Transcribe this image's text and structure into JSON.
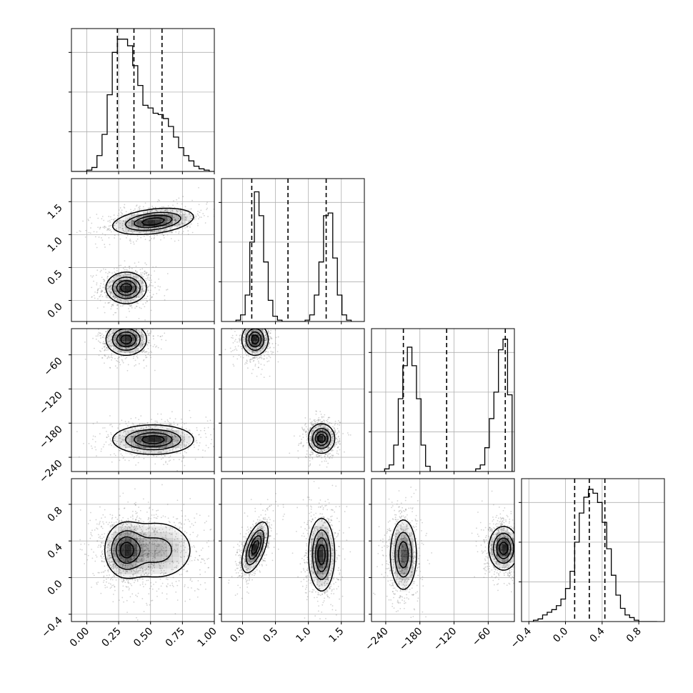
{
  "chart_data": {
    "type": "corner",
    "parameters": [
      {
        "range": [
          -0.12,
          1.0
        ],
        "ticks": [
          0.0,
          0.25,
          0.5,
          0.75,
          1.0
        ],
        "tick_labels": [
          "0.00",
          "0.25",
          "0.50",
          "0.75",
          "1.00"
        ]
      },
      {
        "range": [
          -0.32,
          1.85
        ],
        "ticks": [
          0.0,
          0.5,
          1.0,
          1.5
        ],
        "tick_labels": [
          "0.0",
          "0.5",
          "1.0",
          "1.5"
        ]
      },
      {
        "range": [
          -265,
          -14
        ],
        "ticks": [
          -240,
          -180,
          -120,
          -60
        ],
        "tick_labels": [
          "−240",
          "−180",
          "−120",
          "−60"
        ]
      },
      {
        "range": [
          -0.48,
          1.08
        ],
        "ticks": [
          -0.4,
          0.0,
          0.4,
          0.8
        ],
        "tick_labels": [
          "−0.4",
          "0.0",
          "0.4",
          "0.8"
        ]
      }
    ],
    "marginals": [
      {
        "quantiles": [
          0.24,
          0.37,
          0.59
        ],
        "edges": [
          -0.12,
          -0.08,
          -0.04,
          0.0,
          0.04,
          0.08,
          0.12,
          0.16,
          0.2,
          0.24,
          0.28,
          0.32,
          0.36,
          0.4,
          0.44,
          0.48,
          0.52,
          0.56,
          0.6,
          0.64,
          0.68,
          0.72,
          0.76,
          0.8,
          0.84,
          0.88,
          0.92,
          0.96,
          1.0
        ],
        "counts": [
          0,
          0,
          0,
          0.01,
          0.03,
          0.12,
          0.28,
          0.58,
          0.9,
          1.0,
          1.0,
          0.95,
          0.8,
          0.65,
          0.5,
          0.48,
          0.44,
          0.43,
          0.4,
          0.34,
          0.26,
          0.18,
          0.12,
          0.08,
          0.04,
          0.02,
          0.01,
          0.0
        ]
      },
      {
        "quantiles": [
          0.14,
          0.69,
          1.27
        ],
        "edges": [
          -0.1,
          -0.03,
          0.04,
          0.11,
          0.18,
          0.25,
          0.32,
          0.39,
          0.46,
          0.53,
          0.6,
          0.67,
          0.74,
          0.81,
          0.88,
          0.95,
          1.02,
          1.09,
          1.16,
          1.23,
          1.3,
          1.37,
          1.44,
          1.51,
          1.58,
          1.65
        ],
        "counts": [
          0.01,
          0.05,
          0.2,
          0.6,
          0.98,
          0.8,
          0.45,
          0.16,
          0.04,
          0.01,
          0.0,
          0.0,
          0.0,
          0.0,
          0.0,
          0.01,
          0.05,
          0.2,
          0.45,
          0.8,
          0.82,
          0.48,
          0.2,
          0.05,
          0.01
        ]
      },
      {
        "quantiles": [
          -209,
          -133,
          -30
        ],
        "edges": [
          -250,
          -242,
          -234,
          -226,
          -218,
          -210,
          -202,
          -194,
          -186,
          -178,
          -170,
          -162,
          -154,
          -146,
          -138,
          -130,
          -122,
          -114,
          -106,
          -98,
          -90,
          -82,
          -74,
          -66,
          -58,
          -50,
          -42,
          -34,
          -26,
          -18
        ],
        "counts": [
          0.0,
          0.02,
          0.05,
          0.2,
          0.55,
          0.8,
          0.94,
          0.8,
          0.55,
          0.2,
          0.04,
          0.0,
          0.0,
          0.0,
          0.0,
          0.0,
          0.0,
          0.0,
          0.0,
          0.0,
          0.0,
          0.02,
          0.05,
          0.18,
          0.4,
          0.6,
          0.92,
          1.0,
          0.58
        ]
      },
      {
        "quantiles": [
          0.1,
          0.26,
          0.43
        ],
        "edges": [
          -0.4,
          -0.35,
          -0.3,
          -0.25,
          -0.2,
          -0.15,
          -0.1,
          -0.05,
          0.0,
          0.05,
          0.1,
          0.15,
          0.2,
          0.25,
          0.3,
          0.35,
          0.4,
          0.45,
          0.5,
          0.55,
          0.6,
          0.65,
          0.7,
          0.75,
          0.8,
          0.85,
          0.9,
          0.95,
          1.0
        ],
        "counts": [
          0.0,
          0.01,
          0.02,
          0.05,
          0.07,
          0.09,
          0.12,
          0.17,
          0.25,
          0.38,
          0.6,
          0.82,
          0.94,
          1.0,
          0.97,
          0.9,
          0.75,
          0.55,
          0.35,
          0.2,
          0.1,
          0.05,
          0.03,
          0.01,
          0.0,
          0.0,
          0.0,
          0.0
        ]
      }
    ],
    "joint_clusters": [
      {
        "pair": [
          0,
          1
        ],
        "components": [
          {
            "mean": [
              0.31,
              0.19
            ],
            "sd": [
              0.08,
              0.12
            ],
            "rho": 0.0,
            "weight": 1.0
          },
          {
            "mean": [
              0.52,
              1.2
            ],
            "sd": [
              0.16,
              0.1
            ],
            "rho": 0.35,
            "weight": 1.0
          }
        ]
      },
      {
        "pair": [
          0,
          2
        ],
        "components": [
          {
            "mean": [
              0.31,
              -33
            ],
            "sd": [
              0.08,
              14
            ],
            "rho": 0.0,
            "weight": 1.0
          },
          {
            "mean": [
              0.52,
              -209
            ],
            "sd": [
              0.16,
              13
            ],
            "rho": 0.0,
            "weight": 1.0
          }
        ]
      },
      {
        "pair": [
          1,
          2
        ],
        "components": [
          {
            "mean": [
              0.19,
              -33
            ],
            "sd": [
              0.1,
              14
            ],
            "rho": 0.0,
            "weight": 1.0
          },
          {
            "mean": [
              1.2,
              -207
            ],
            "sd": [
              0.1,
              13
            ],
            "rho": 0.0,
            "weight": 1.0
          }
        ]
      },
      {
        "pair": [
          0,
          3
        ],
        "components": [
          {
            "mean": [
              0.3,
              0.3
            ],
            "sd": [
              0.08,
              0.15
            ],
            "rho": 0.0,
            "weight": 1.3
          },
          {
            "mean": [
              0.55,
              0.3
            ],
            "sd": [
              0.16,
              0.18
            ],
            "rho": 0.0,
            "weight": 0.8
          }
        ]
      },
      {
        "pair": [
          1,
          3
        ],
        "components": [
          {
            "mean": [
              0.19,
              0.33
            ],
            "sd": [
              0.1,
              0.14
            ],
            "rho": 0.6,
            "weight": 1.0
          },
          {
            "mean": [
              1.2,
              0.25
            ],
            "sd": [
              0.1,
              0.2
            ],
            "rho": 0.0,
            "weight": 1.0
          }
        ]
      },
      {
        "pair": [
          2,
          3
        ],
        "components": [
          {
            "mean": [
              -209,
              0.25
            ],
            "sd": [
              12,
              0.2
            ],
            "rho": 0.0,
            "weight": 1.0
          },
          {
            "mean": [
              -33,
              0.32
            ],
            "sd": [
              13,
              0.12
            ],
            "rho": 0.0,
            "weight": 1.2
          }
        ]
      }
    ],
    "contour_levels": [
      0.14,
      0.4,
      0.65,
      0.86
    ],
    "grid": true,
    "colors": {
      "line": "#000000",
      "grid": "#b0b0b0",
      "density": "#000000",
      "scatter": "#7f7f7f"
    }
  }
}
